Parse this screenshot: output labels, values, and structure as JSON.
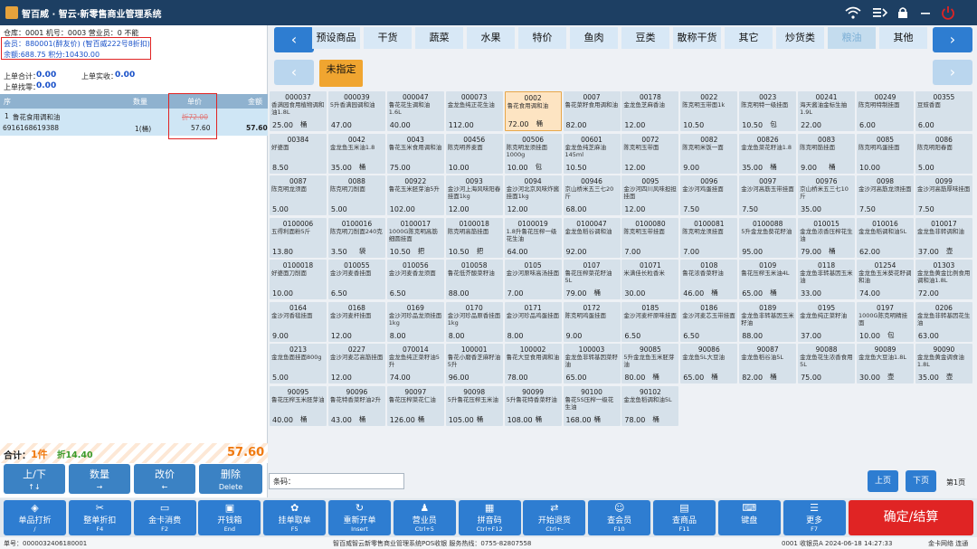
{
  "app": {
    "title": "智百威 · 智云·新零售商业管理系统"
  },
  "topbar_icons": [
    "wifi-icon",
    "menu-exit-icon",
    "lock-icon",
    "minimize-icon",
    "power-icon"
  ],
  "info": {
    "line1": "仓库：0001  机号：0003  营业员：0 不能",
    "member": "会员：880001(醉友价)  (智百威222号8折扣)",
    "balance": "余额:688.75 积分:10430.00"
  },
  "summary": {
    "last_total_label": "上单合计：",
    "last_total": "0.00",
    "last_paid_label": "上单实收：",
    "last_paid": "0.00",
    "last_change_label": "上单找零：",
    "last_change": "0.00"
  },
  "order_table": {
    "headers": [
      "序",
      "数量",
      "单价",
      "金额"
    ],
    "rows": [
      {
        "index": "1",
        "name": "鲁花食用调和油",
        "barcode": "6916168619388",
        "qty": "1(桶)",
        "orig_price": "折72.00",
        "price": "57.60",
        "amount": "57.60"
      }
    ]
  },
  "totals": {
    "label": "合计：",
    "count": "1件",
    "discount": "折14.40",
    "amount": "57.60"
  },
  "left_buttons": [
    {
      "label": "上/下",
      "key": "↑↓"
    },
    {
      "label": "数量",
      "key": "→"
    },
    {
      "label": "改价",
      "key": "←"
    },
    {
      "label": "删除",
      "key": "Delete"
    }
  ],
  "categories": [
    "预设商品",
    "干货",
    "蔬菜",
    "水果",
    "特价",
    "鱼肉",
    "豆类",
    "散称干货",
    "其它",
    "炒货类",
    "粮油",
    "其他"
  ],
  "active_category": "粮油",
  "subcategory": "未指定",
  "products": [
    [
      "000037",
      "香满园食用植物调和油1.8L",
      "25.00",
      "桶"
    ],
    [
      "000039",
      "5升香满园调和油",
      "47.00",
      ""
    ],
    [
      "000047",
      "鲁花花生调和油1.6L",
      "40.00",
      ""
    ],
    [
      "000073",
      "金龙鱼纯正花生油",
      "112.00",
      ""
    ],
    [
      "0002",
      "鲁花食用调和油",
      "72.00",
      "桶"
    ],
    [
      "0007",
      "鲁花菜籽食用调和油",
      "82.00",
      ""
    ],
    [
      "00178",
      "金龙鱼芝麻香油",
      "12.00",
      ""
    ],
    [
      "0022",
      "陈克明玉带面1k",
      "10.50",
      ""
    ],
    [
      "0023",
      "陈克明特一级挂面",
      "10.50",
      "包"
    ],
    [
      "00241",
      "海天酱油金标生抽1.9L",
      "22.00",
      ""
    ],
    [
      "00249",
      "陈克明特制挂面",
      "6.00",
      ""
    ],
    [
      "00355",
      "豆豉香面",
      "6.00",
      ""
    ],
    [
      "00384",
      "好婆面",
      "8.50",
      ""
    ],
    [
      "0042",
      "金龙鱼玉米油1.8",
      "35.00",
      "桶"
    ],
    [
      "0043",
      "鲁花玉米食用调和油",
      "75.00",
      ""
    ],
    [
      "00456",
      "陈克明荞麦面",
      "10.00",
      ""
    ],
    [
      "00506",
      "陈克明龙须挂面1000g",
      "10.00",
      "包"
    ],
    [
      "00601",
      "金龙鱼纯芝麻油145ml",
      "10.50",
      ""
    ],
    [
      "0072",
      "陈克明玉带面",
      "12.00",
      ""
    ],
    [
      "0082",
      "陈克明米饭一面",
      "9.00",
      ""
    ],
    [
      "00826",
      "金龙鱼菜花籽油1.8",
      "35.00",
      "桶"
    ],
    [
      "0083",
      "陈克明筋挂面",
      "9.00",
      "桶"
    ],
    [
      "0085",
      "陈克明鸡蛋挂面",
      "10.00",
      ""
    ],
    [
      "0086",
      "陈克明阳春面",
      "5.00",
      ""
    ],
    [
      "0087",
      "陈克明龙须面",
      "5.00",
      ""
    ],
    [
      "0088",
      "陈克明刀削面",
      "5.00",
      ""
    ],
    [
      "00922",
      "鲁花玉米胚芽油5升",
      "102.00",
      ""
    ],
    [
      "0093",
      "金沙河上海风味阳春挂面1kg",
      "12.00",
      ""
    ],
    [
      "0094",
      "金沙河北京风味炸酱挂面1kg",
      "12.00",
      ""
    ],
    [
      "00946",
      "京山桥米五三七20斤",
      "68.00",
      ""
    ],
    [
      "0095",
      "金沙河四川风味担担挂面",
      "12.00",
      ""
    ],
    [
      "0096",
      "金沙河鸡蛋挂面",
      "7.50",
      ""
    ],
    [
      "0097",
      "金沙河高筋玉带挂面",
      "7.50",
      ""
    ],
    [
      "00976",
      "京山桥米五三七10斤",
      "35.00",
      ""
    ],
    [
      "0098",
      "金沙河高筋龙须挂面",
      "7.50",
      ""
    ],
    [
      "0099",
      "金沙河高筋厚味挂面",
      "7.50",
      ""
    ],
    [
      "0100006",
      "五得利面粉5斤",
      "13.80",
      ""
    ],
    [
      "0100016",
      "陈克明刀削面240克",
      "3.50",
      "袋"
    ],
    [
      "0100017",
      "1000G陈克明高筋细圆挂面",
      "10.50",
      "把"
    ],
    [
      "0100018",
      "陈克明高筋挂面",
      "10.50",
      "把"
    ],
    [
      "0100019",
      "1.8升鲁花压榨一级花生油",
      "64.00",
      ""
    ],
    [
      "0100047",
      "金龙鱼稻谷调和油",
      "92.00",
      ""
    ],
    [
      "0100080",
      "陈克明玉带挂面",
      "7.00",
      ""
    ],
    [
      "0100081",
      "陈克明龙须挂面",
      "7.00",
      ""
    ],
    [
      "0100088",
      "5升金龙鱼葵花籽油",
      "95.00",
      ""
    ],
    [
      "010015",
      "金龙鱼浓香压榨花生油",
      "79.00",
      "桶"
    ],
    [
      "010016",
      "金龙鱼稻调和油5L",
      "62.00",
      ""
    ],
    [
      "010017",
      "金龙鱼非转调和油",
      "37.00",
      "壶"
    ],
    [
      "0100018",
      "好婆面刀削面",
      "10.00",
      ""
    ],
    [
      "010055",
      "金沙河麦香挂面",
      "6.50",
      ""
    ],
    [
      "010056",
      "金沙河麦香龙须面",
      "6.50",
      ""
    ],
    [
      "010058",
      "鲁花低芥酸菜籽油",
      "88.00",
      ""
    ],
    [
      "0105",
      "金沙河原味高汤挂面",
      "7.00",
      ""
    ],
    [
      "0107",
      "鲁花压榨菜花籽油5L",
      "79.00",
      "桶"
    ],
    [
      "01071",
      "米满佳长粒香米",
      "30.00",
      ""
    ],
    [
      "0108",
      "鲁花浓香菜籽油",
      "46.00",
      "桶"
    ],
    [
      "0109",
      "鲁花压榨玉米油4L",
      "65.00",
      "桶"
    ],
    [
      "0118",
      "金龙鱼非转基因玉米油",
      "33.00",
      ""
    ],
    [
      "01254",
      "金龙鱼玉米葵花籽调和油",
      "74.00",
      ""
    ],
    [
      "01303",
      "金龙鱼黄金比例食用调和油1.8L",
      "72.00",
      ""
    ],
    [
      "0164",
      "金沙河香毯挂面",
      "9.00",
      ""
    ],
    [
      "0168",
      "金沙河麦杆挂面",
      "12.00",
      ""
    ],
    [
      "0169",
      "金沙河珍品龙须挂面1kg",
      "8.00",
      ""
    ],
    [
      "0170",
      "金沙河珍品原香挂面1kg",
      "8.00",
      ""
    ],
    [
      "0171",
      "金沙河珍品鸡蛋挂面",
      "8.00",
      ""
    ],
    [
      "0172",
      "陈克明鸡蛋挂面",
      "9.00",
      ""
    ],
    [
      "0185",
      "金沙河麦杆原味挂面",
      "6.50",
      ""
    ],
    [
      "0186",
      "金沙河麦芯玉带挂面",
      "6.50",
      ""
    ],
    [
      "0189",
      "金龙鱼非转基因玉米籽油",
      "88.00",
      ""
    ],
    [
      "0195",
      "金龙鱼纯正菜籽油",
      "37.00",
      ""
    ],
    [
      "0197",
      "1000G陈克明精挂面",
      "10.00",
      "包"
    ],
    [
      "0206",
      "金龙鱼非转基因花生油",
      "63.00",
      ""
    ],
    [
      "0213",
      "金龙鱼面挂面800g",
      "5.00",
      ""
    ],
    [
      "0227",
      "金沙河麦芯高筋挂面",
      "12.00",
      ""
    ],
    [
      "070014",
      "金龙鱼纯正菜籽油5升",
      "74.00",
      ""
    ],
    [
      "100001",
      "鲁花小磨香芝麻籽油5升",
      "96.00",
      ""
    ],
    [
      "100002",
      "鲁花大豆食用调和油",
      "78.00",
      ""
    ],
    [
      "100003",
      "金龙鱼非转基因菜籽油",
      "65.00",
      ""
    ],
    [
      "90085",
      "5升金龙鱼玉米胚芽油",
      "80.00",
      "桶"
    ],
    [
      "90086",
      "金龙鱼5L大豆油",
      "65.00",
      "桶"
    ],
    [
      "90087",
      "金龙鱼稻谷油5L",
      "82.00",
      "桶"
    ],
    [
      "90088",
      "金龙鱼花生浓香食用5L",
      "75.00",
      ""
    ],
    [
      "90089",
      "金龙鱼大豆油1.8L",
      "30.00",
      "壶"
    ],
    [
      "90090",
      "金龙鱼黄金调食油1.8L",
      "35.00",
      "壶"
    ],
    [
      "90095",
      "鲁花压榨玉米胚芽油",
      "40.00",
      "桶"
    ],
    [
      "90096",
      "鲁花特香菜籽油2升",
      "43.00",
      "桶"
    ],
    [
      "90097",
      "鲁花压榨菜花仁油",
      "126.00",
      "桶"
    ],
    [
      "90098",
      "5升鲁花压榨玉米油",
      "105.00",
      "桶"
    ],
    [
      "90099",
      "5升鲁花特香菜籽油",
      "108.00",
      "桶"
    ],
    [
      "90100",
      "鲁花5S压榨一级花生油",
      "168.00",
      "桶"
    ],
    [
      "90102",
      "金龙鱼稻调和油5L",
      "78.00",
      "桶"
    ]
  ],
  "barcode": {
    "label": "条码：",
    "value": ""
  },
  "pagination": {
    "prev": "上页",
    "next": "下页",
    "info": "第1页"
  },
  "bottom_buttons": [
    {
      "label": "单品打折",
      "key": "/",
      "icon": "tag-icon"
    },
    {
      "label": "整单折扣",
      "key": "F4",
      "icon": "discount-icon"
    },
    {
      "label": "金卡消费",
      "key": "F2",
      "icon": "card-icon"
    },
    {
      "label": "开钱箱",
      "key": "End",
      "icon": "cashbox-icon"
    },
    {
      "label": "挂单取单",
      "key": "F5",
      "icon": "hold-icon"
    },
    {
      "label": "重新开单",
      "key": "Insert",
      "icon": "refresh-icon"
    },
    {
      "label": "营业员",
      "key": "Ctrl+5",
      "icon": "person-icon"
    },
    {
      "label": "拼音码",
      "key": "Ctrl+F12",
      "icon": "pinyin-icon"
    },
    {
      "label": "开始退货",
      "key": "Ctrl+-",
      "icon": "return-icon"
    },
    {
      "label": "查会员",
      "key": "F10",
      "icon": "member-icon"
    },
    {
      "label": "查商品",
      "key": "F11",
      "icon": "bag-icon"
    },
    {
      "label": "键盘",
      "key": "",
      "icon": "keyboard-icon"
    },
    {
      "label": "更多",
      "key": "F7",
      "icon": "more-icon"
    }
  ],
  "confirm_label": "确定/结算",
  "status": {
    "order_no": "单号：0000032406180001",
    "center": "智百威智云新零售商业管理系统POS收银  服务热线：0755-82807558",
    "right": "0001 收银员A  2024-06-18 14:27:33",
    "network": "金卡网络 连通"
  }
}
